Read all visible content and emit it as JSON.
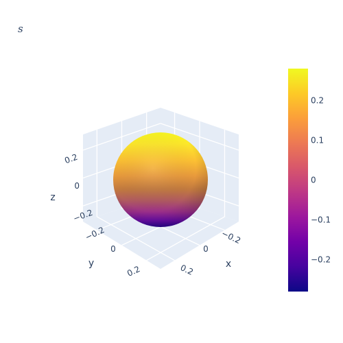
{
  "chart_data": {
    "type": "surface",
    "title": "s",
    "shape": "sphere",
    "center": [
      0,
      0,
      0
    ],
    "radius": 0.28,
    "surfacecolor": "z",
    "colorscale": "Plasma",
    "color_range": [
      -0.28,
      0.28
    ],
    "axes": {
      "x": {
        "title": "x",
        "ticks": [
          "−0.2",
          "0",
          "0.2"
        ]
      },
      "y": {
        "title": "y",
        "ticks": [
          "−0.2",
          "0",
          "0.2"
        ]
      },
      "z": {
        "title": "z",
        "ticks": [
          "−0.2",
          "0",
          "0.2"
        ]
      }
    },
    "colorbar": {
      "ticks": [
        {
          "value": 0.2,
          "label": "0.2"
        },
        {
          "value": 0.1,
          "label": "0.1"
        },
        {
          "value": 0,
          "label": "0"
        },
        {
          "value": -0.1,
          "label": "−0.1"
        },
        {
          "value": -0.2,
          "label": "−0.2"
        }
      ]
    },
    "scene_background": "#e5ecf6",
    "grid": true
  }
}
